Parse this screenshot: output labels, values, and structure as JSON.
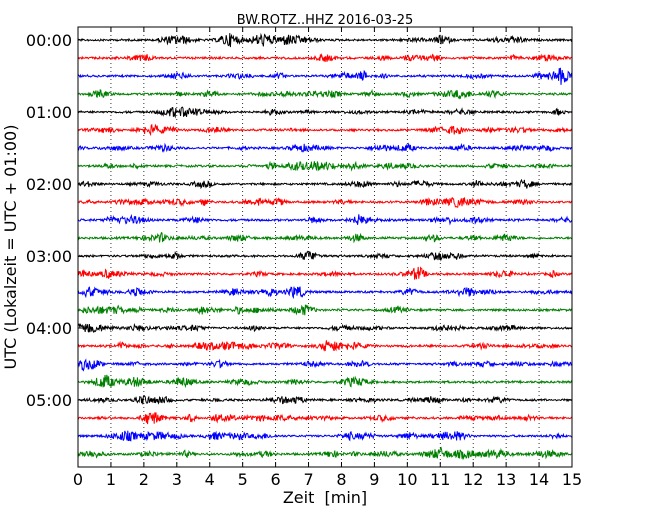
{
  "chart_data": {
    "type": "line",
    "title": "BW.ROTZ..HHZ 2016-03-25",
    "xlabel": "Zeit  [min]",
    "ylabel": "UTC (Lokalzeit = UTC + 01:00)",
    "xlim": [
      0,
      15
    ],
    "x_ticks": [
      "0",
      "1",
      "2",
      "3",
      "4",
      "5",
      "6",
      "7",
      "8",
      "9",
      "10",
      "11",
      "12",
      "13",
      "14",
      "15"
    ],
    "y_ticks": [
      "00:00",
      "01:00",
      "02:00",
      "03:00",
      "04:00",
      "05:00"
    ],
    "grid": "vertical dotted",
    "trace_minutes_interval": 15,
    "trace_count": 24,
    "trace_colors": [
      "#000000",
      "#ff0000",
      "#0000ff",
      "#008000"
    ]
  }
}
